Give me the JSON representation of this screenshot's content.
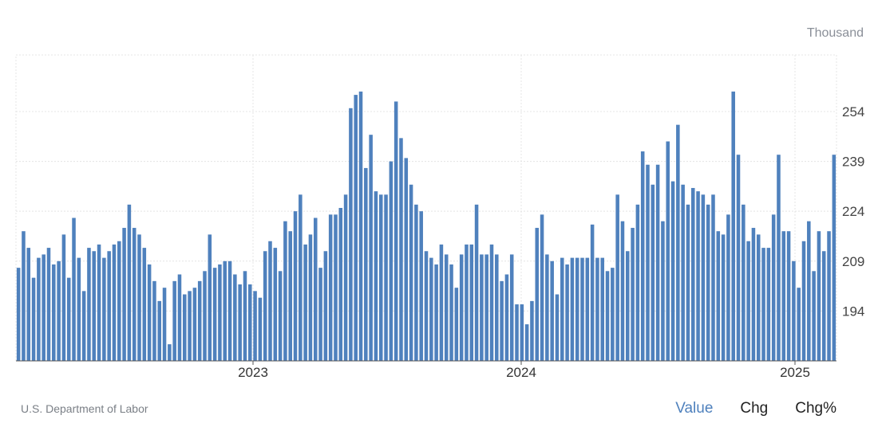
{
  "unit_label": "Thousand",
  "source": "U.S. Department of Labor",
  "toggles": [
    {
      "label": "Value",
      "active": true
    },
    {
      "label": "Chg",
      "active": false
    },
    {
      "label": "Chg%",
      "active": false
    }
  ],
  "colors": {
    "bar": "#4f81bd",
    "grid": "#e4e4e4",
    "axis": "#555555",
    "active_toggle": "#4f81bd"
  },
  "chart_data": {
    "type": "bar",
    "y_ticks": [
      "194",
      "209",
      "224",
      "239",
      "254"
    ],
    "ylim": [
      179,
      271
    ],
    "x_ticks": [
      "2023",
      "2024",
      "2025"
    ],
    "grid": true,
    "values": [
      207,
      218,
      213,
      204,
      210,
      211,
      213,
      208,
      209,
      217,
      204,
      222,
      210,
      200,
      213,
      212,
      214,
      210,
      212,
      214,
      215,
      219,
      226,
      219,
      217,
      213,
      208,
      203,
      197,
      201,
      184,
      203,
      205,
      199,
      200,
      201,
      203,
      206,
      217,
      207,
      208,
      209,
      209,
      205,
      202,
      206,
      202,
      200,
      198,
      212,
      215,
      213,
      206,
      221,
      218,
      224,
      229,
      214,
      217,
      222,
      207,
      212,
      223,
      223,
      225,
      229,
      255,
      259,
      260,
      237,
      247,
      230,
      229,
      229,
      239,
      257,
      246,
      240,
      232,
      226,
      224,
      212,
      210,
      208,
      214,
      211,
      208,
      201,
      211,
      214,
      214,
      226,
      211,
      211,
      214,
      211,
      203,
      205,
      211,
      196,
      196,
      190,
      197,
      219,
      223,
      211,
      209,
      199,
      210,
      208,
      210,
      210,
      210,
      210,
      220,
      210,
      210,
      206,
      207,
      229,
      221,
      212,
      219,
      226,
      242,
      238,
      232,
      238,
      221,
      245,
      233,
      250,
      232,
      226,
      231,
      230,
      229,
      226,
      229,
      218,
      217,
      223,
      260,
      241,
      226,
      215,
      219,
      217,
      213,
      213,
      223,
      241,
      218,
      218,
      209,
      201,
      215,
      221,
      206,
      218,
      212,
      218,
      241
    ]
  }
}
